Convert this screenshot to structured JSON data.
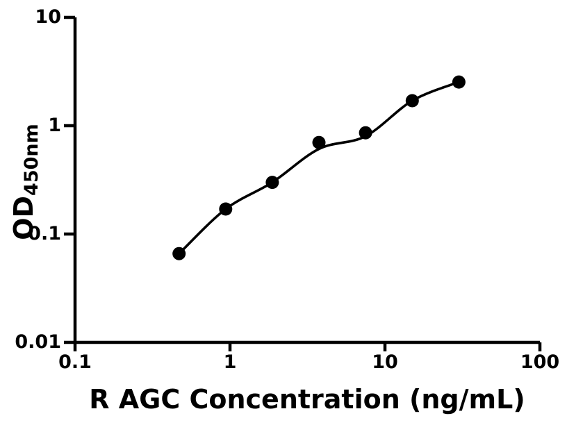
{
  "chart_data": {
    "type": "scatter",
    "title": "",
    "xlabel": "R AGC Concentration (ng/mL)",
    "ylabel": "OD",
    "ylabel_subscript": "450nm",
    "xscale": "log",
    "yscale": "log",
    "xlim": [
      0.1,
      100
    ],
    "ylim": [
      0.01,
      10
    ],
    "grid": false,
    "legend": "none",
    "marker_color": "#000000",
    "line_color": "#000000",
    "background_color": "#ffffff",
    "points": {
      "x": [
        0.469,
        0.938,
        1.875,
        3.75,
        7.5,
        15,
        30
      ],
      "y": [
        0.066,
        0.17,
        0.3,
        0.7,
        0.86,
        1.7,
        2.53
      ]
    },
    "fit_curve": {
      "description": "smooth 4PL-style fitted curve from first to last point",
      "x": [
        0.469,
        0.938,
        1.875,
        3.75,
        7.5,
        15,
        30
      ],
      "y": [
        0.066,
        0.17,
        0.3,
        0.61,
        0.8,
        1.7,
        2.53
      ]
    },
    "x_ticks": [
      {
        "value": 0.1,
        "label": "0.1"
      },
      {
        "value": 1,
        "label": "1"
      },
      {
        "value": 10,
        "label": "10"
      },
      {
        "value": 100,
        "label": "100"
      }
    ],
    "y_ticks": [
      {
        "value": 10,
        "label": "10"
      },
      {
        "value": 1,
        "label": "1"
      },
      {
        "value": 0.1,
        "label": "0.1"
      },
      {
        "value": 0.01,
        "label": "0.01"
      }
    ]
  }
}
